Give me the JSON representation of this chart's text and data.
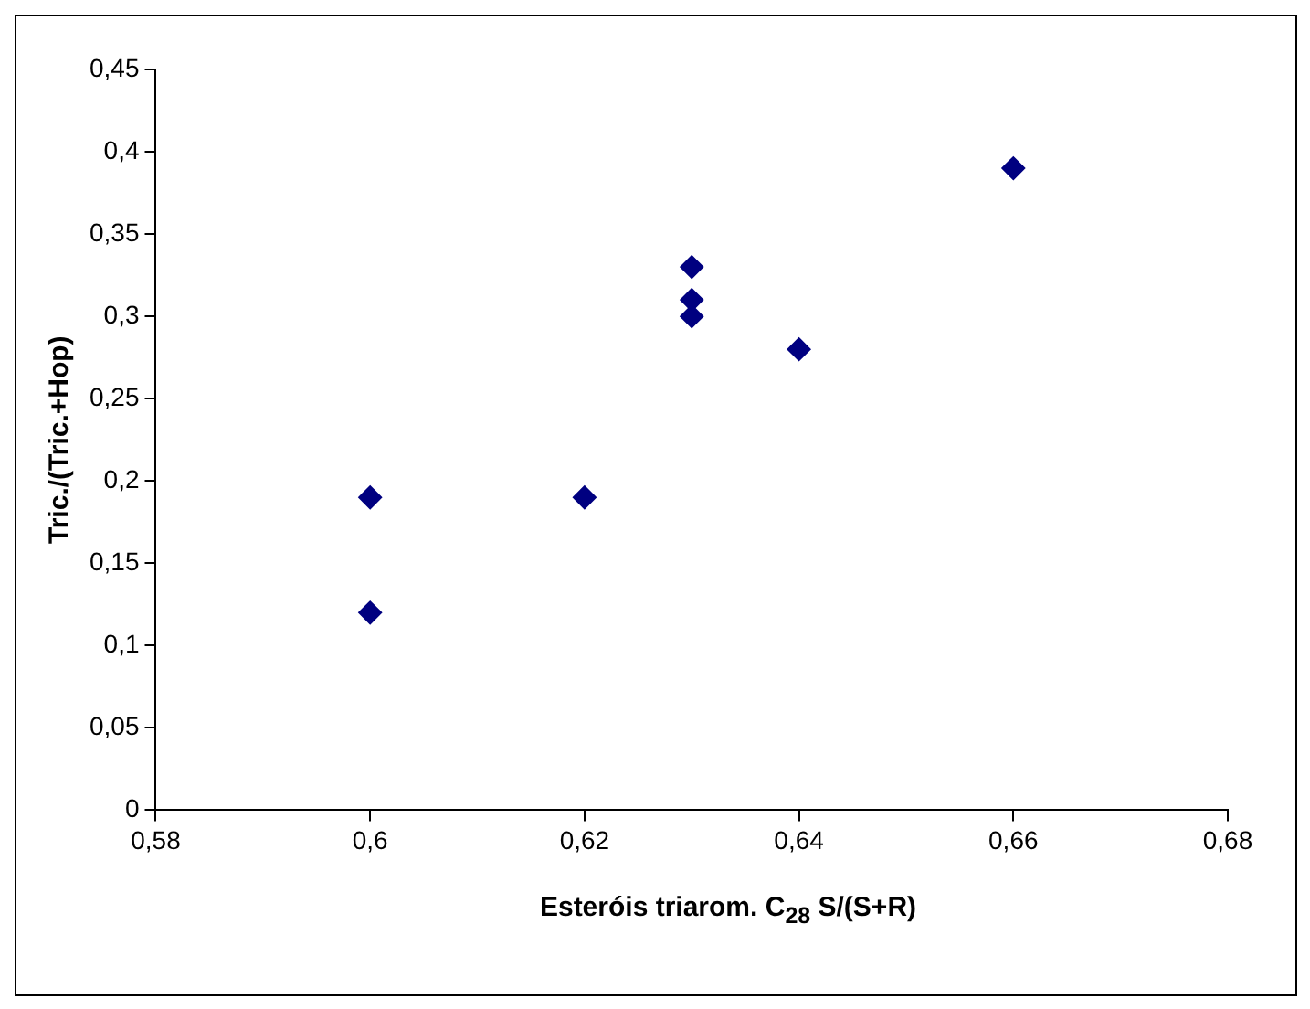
{
  "chart_data": {
    "type": "scatter",
    "xlabel": "Esteróis triarom. C$_{28}$ S/(S+R)",
    "ylabel": "Tric./(Tric.+Hop)",
    "x": [
      0.6,
      0.6,
      0.62,
      0.63,
      0.63,
      0.63,
      0.64,
      0.66
    ],
    "values": [
      0.19,
      0.12,
      0.19,
      0.33,
      0.31,
      0.3,
      0.28,
      0.39
    ],
    "color": "#000080",
    "marker": "diamond",
    "grid": false,
    "legend": false,
    "xlim": [
      0.58,
      0.68
    ],
    "xticks": [
      {
        "value": 0.58,
        "label": "0,58"
      },
      {
        "value": 0.6,
        "label": "0,6"
      },
      {
        "value": 0.62,
        "label": "0,62"
      },
      {
        "value": 0.64,
        "label": "0,64"
      },
      {
        "value": 0.66,
        "label": "0,66"
      },
      {
        "value": 0.68,
        "label": "0,68"
      }
    ],
    "ylim": [
      0,
      0.45
    ],
    "yticks": [
      0,
      {
        "value": 0.05,
        "label": "0,05"
      },
      {
        "value": 0.1,
        "label": "0,1"
      },
      {
        "value": 0.15,
        "label": "0,15"
      },
      {
        "value": 0.2,
        "label": "0,2"
      },
      {
        "value": 0.25,
        "label": "0,25"
      },
      {
        "value": 0.3,
        "label": "0,3"
      },
      {
        "value": 0.35,
        "label": "0,35"
      },
      {
        "value": 0.4,
        "label": "0,4"
      },
      {
        "value": 0.45,
        "label": "0,45"
      }
    ]
  }
}
